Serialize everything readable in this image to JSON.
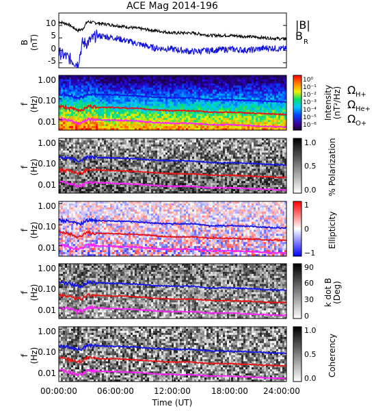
{
  "figure": {
    "title": "ACE Mag 2014-196",
    "xlabel": "Time (UT)",
    "xticks": [
      "00:00:00",
      "06:00:00",
      "12:00:00",
      "18:00:00",
      "24:00:00"
    ]
  },
  "colors": {
    "B_total": "#000000",
    "B_R": "#1010e0",
    "omega_H": "#1414e6",
    "omega_He": "#e61414",
    "omega_O": "#ff20ff"
  },
  "legends": {
    "panel1": {
      "B_total": "|B|",
      "B_R": "B",
      "B_R_sub": "R"
    },
    "gyro": {
      "H": {
        "symbol": "Ω",
        "sub": "H+"
      },
      "He": {
        "symbol": "Ω",
        "sub": "He+"
      },
      "O": {
        "symbol": "Ω",
        "sub": "O+"
      }
    }
  },
  "chart_data": [
    {
      "type": "line",
      "panel": "B",
      "ylabel": "B",
      "ylabel2": "(nT)",
      "ylim": [
        -7,
        15
      ],
      "yticks": [
        "10",
        "5",
        "0",
        "-5"
      ],
      "x_hours": [
        0,
        1,
        2,
        2.5,
        3,
        4,
        6,
        8,
        10,
        12,
        14,
        16,
        18,
        20,
        22,
        24
      ],
      "series": [
        {
          "name": "|B|",
          "values": [
            11.5,
            10.5,
            8,
            8.5,
            11.5,
            11,
            10,
            9,
            8,
            7,
            7,
            6,
            6,
            5.5,
            5,
            4.5
          ]
        },
        {
          "name": "B_R",
          "values": [
            -1,
            -3,
            -5.5,
            3,
            3,
            6,
            5,
            3,
            1,
            0.5,
            -0.5,
            0,
            0.5,
            0,
            1,
            0.5
          ]
        }
      ]
    },
    {
      "type": "heatmap",
      "panel": "intensity",
      "ylabel": "f",
      "ylabel2": "(Hz)",
      "yticks": [
        "1.00",
        "0.10",
        "0.01"
      ],
      "colorbar_label": "Intensity",
      "colorbar_label2": "(nT²/Hz)",
      "colorbar_ticks": [
        "10⁰",
        "10⁻¹",
        "10⁻²",
        "10⁻³",
        "10⁻⁴",
        "10⁻⁵",
        "10⁻⁶"
      ]
    },
    {
      "type": "heatmap",
      "panel": "polarization",
      "ylabel": "f",
      "ylabel2": "(Hz)",
      "yticks": [
        "1.00",
        "0.10",
        "0.01"
      ],
      "colorbar_label": "% Polarization",
      "colorbar_ticks": [
        "1.0",
        "0.5",
        "0.0"
      ]
    },
    {
      "type": "heatmap",
      "panel": "ellipticity",
      "ylabel": "f",
      "ylabel2": "(Hz)",
      "yticks": [
        "1.00",
        "0.10",
        "0.01"
      ],
      "colorbar_label": "Ellipticity",
      "colorbar_ticks": [
        "1",
        "0",
        "−1"
      ]
    },
    {
      "type": "heatmap",
      "panel": "kdotb",
      "ylabel": "f",
      "ylabel2": "(Hz)",
      "yticks": [
        "1.00",
        "0.10",
        "0.01"
      ],
      "colorbar_label": "k dot B",
      "colorbar_label2": "(Deg)",
      "colorbar_ticks": [
        "90",
        "60",
        "30",
        "0"
      ]
    },
    {
      "type": "heatmap",
      "panel": "coherency",
      "ylabel": "f",
      "ylabel2": "(Hz)",
      "yticks": [
        "1.00",
        "0.10",
        "0.01"
      ],
      "colorbar_label": "Coherency",
      "colorbar_ticks": [
        "1.0",
        "0.5",
        "0.0"
      ]
    }
  ],
  "gyrofrequency_hz": {
    "x_hours": [
      0,
      1,
      2,
      2.5,
      3,
      4,
      6,
      8,
      10,
      12,
      14,
      16,
      18,
      20,
      22,
      24
    ],
    "H": [
      0.17,
      0.15,
      0.11,
      0.12,
      0.17,
      0.16,
      0.15,
      0.14,
      0.12,
      0.11,
      0.11,
      0.09,
      0.09,
      0.085,
      0.075,
      0.07
    ],
    "He": [
      0.043,
      0.038,
      0.028,
      0.03,
      0.043,
      0.04,
      0.038,
      0.035,
      0.03,
      0.027,
      0.027,
      0.023,
      0.023,
      0.021,
      0.019,
      0.018
    ],
    "O": [
      0.011,
      0.0095,
      0.007,
      0.0075,
      0.011,
      0.01,
      0.0095,
      0.0088,
      0.0075,
      0.0068,
      0.0068,
      0.0058,
      0.0058,
      0.0053,
      0.0048,
      0.0045
    ]
  }
}
